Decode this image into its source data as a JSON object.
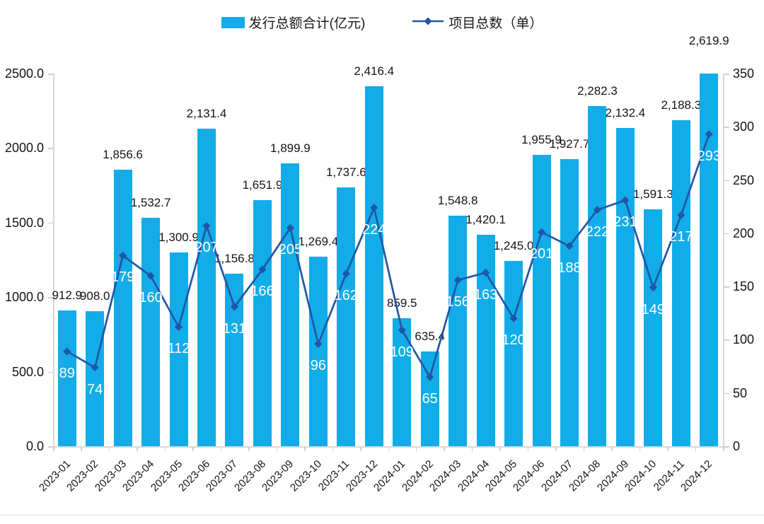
{
  "legend": {
    "bar_label": "发行总额合计(亿元)",
    "line_label": "项目总数（单）"
  },
  "colors": {
    "bar": "#12ACE8",
    "line": "#2056A6",
    "bar_value_text": "#141414",
    "line_value_text": "#ffffff",
    "axis": "#d8d8d8"
  },
  "chart_data": {
    "type": "bar+line combo",
    "title": "",
    "legend_position": "top",
    "grid": false,
    "categories": [
      "2023-01",
      "2023-02",
      "2023-03",
      "2023-04",
      "2023-05",
      "2023-06",
      "2023-07",
      "2023-08",
      "2023-09",
      "2023-10",
      "2023-11",
      "2023-12",
      "2024-01",
      "2024-02",
      "2024-03",
      "2024-04",
      "2024-05",
      "2024-06",
      "2024-07",
      "2024-08",
      "2024-09",
      "2024-10",
      "2024-11",
      "2024-12"
    ],
    "series": [
      {
        "name": "发行总额合计(亿元)",
        "type": "bar",
        "axis": "left",
        "values": [
          912.9,
          908.0,
          1856.6,
          1532.7,
          1300.9,
          2131.4,
          1156.8,
          1651.9,
          1899.9,
          1269.4,
          1737.6,
          2416.4,
          859.5,
          635.4,
          1548.8,
          1420.1,
          1245.0,
          1955.9,
          1927.7,
          2282.3,
          2132.4,
          1591.3,
          2188.3,
          2619.9
        ],
        "labels": [
          "912.9",
          "908.0",
          "1,856.6",
          "1,532.7",
          "1,300.9",
          "2,131.4",
          "1,156.8",
          "1,651.9",
          "1,899.9",
          "1,269.4",
          "1,737.6",
          "2,416.4",
          "859.5",
          "635.4",
          "1,548.8",
          "1,420.1",
          "1,245.0",
          "1,955.9",
          "1,927.7",
          "2,282.3",
          "2,132.4",
          "1,591.3",
          "2,188.3",
          "2,619.9"
        ]
      },
      {
        "name": "项目总数（单）",
        "type": "line",
        "axis": "right",
        "marker": "diamond",
        "values": [
          89,
          74,
          179,
          160,
          112,
          207,
          131,
          166,
          205,
          96,
          162,
          224,
          109,
          65,
          156,
          163,
          120,
          201,
          188,
          222,
          231,
          149,
          217,
          293
        ]
      }
    ],
    "left_axis": {
      "min": 0,
      "max": 2500,
      "step": 500,
      "tick_labels": [
        "0.0",
        "500.0",
        "1000.0",
        "1500.0",
        "2000.0",
        "2500.0"
      ]
    },
    "right_axis": {
      "min": 0,
      "max": 350,
      "step": 50,
      "tick_labels": [
        "0",
        "50",
        "100",
        "150",
        "200",
        "250",
        "300",
        "350"
      ]
    }
  }
}
